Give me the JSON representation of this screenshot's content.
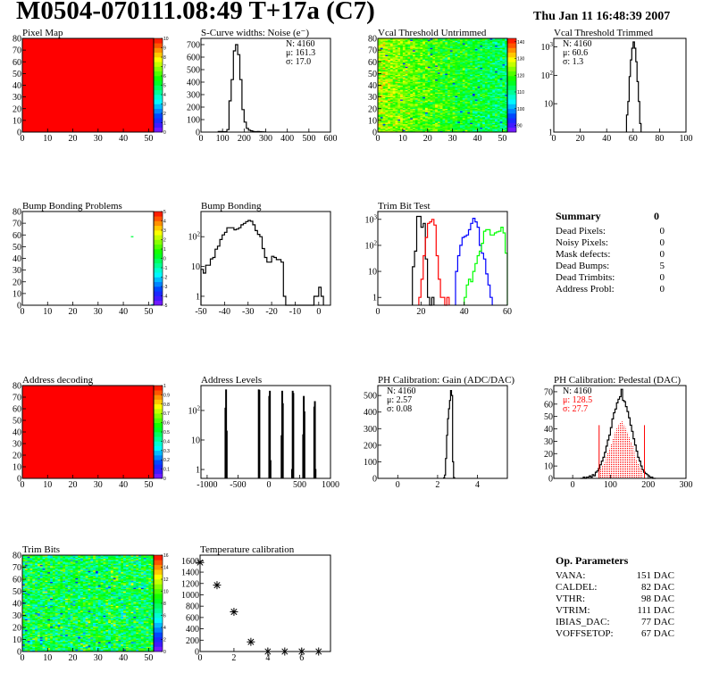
{
  "header": {
    "title": "M0504-070111.08:49 T+17a (C7)",
    "date": "Thu Jan 11 16:48:39 2007"
  },
  "summary": {
    "title": "Summary",
    "total": "0",
    "rows": [
      {
        "label": "Dead Pixels:",
        "value": "0"
      },
      {
        "label": "Noisy Pixels:",
        "value": "0"
      },
      {
        "label": "Mask defects:",
        "value": "0"
      },
      {
        "label": "Dead Bumps:",
        "value": "5"
      },
      {
        "label": "Dead Trimbits:",
        "value": "0"
      },
      {
        "label": "Address Probl:",
        "value": "0"
      }
    ]
  },
  "op_parameters": {
    "title": "Op. Parameters",
    "rows": [
      {
        "label": "VANA:",
        "value": "151 DAC"
      },
      {
        "label": "CALDEL:",
        "value": "82 DAC"
      },
      {
        "label": "VTHR:",
        "value": "98 DAC"
      },
      {
        "label": "VTRIM:",
        "value": "111 DAC"
      },
      {
        "label": "IBIAS_DAC:",
        "value": "77 DAC"
      },
      {
        "label": "VOFFSETOP:",
        "value": "67 DAC"
      }
    ]
  },
  "palette": "rainbow",
  "chart_data": [
    {
      "title": "Pixel Map",
      "type": "heatmap",
      "xlim": [
        0,
        52
      ],
      "ylim": [
        0,
        80
      ],
      "zlim": [
        0,
        10
      ],
      "xticks": [
        "0",
        "10",
        "20",
        "30",
        "40",
        "50"
      ],
      "yticks": [
        "0",
        "10",
        "20",
        "30",
        "40",
        "50",
        "60",
        "70",
        "80"
      ],
      "zticks": [
        "0",
        "1",
        "2",
        "3",
        "4",
        "5",
        "6",
        "7",
        "8",
        "9",
        "10"
      ],
      "uniform_value": 10
    },
    {
      "title": "S-Curve widths: Noise (e⁻)",
      "type": "histogram",
      "log": false,
      "xlim": [
        0,
        600
      ],
      "ylim": [
        0,
        750
      ],
      "xticks": [
        "0",
        "100",
        "200",
        "300",
        "400",
        "500",
        "600"
      ],
      "yticks": [
        "0",
        "100",
        "200",
        "300",
        "400",
        "500",
        "600",
        "700"
      ],
      "stats_position": "top-right",
      "stats": [
        {
          "text": "N: 4160"
        },
        {
          "text": "μ: 161.3"
        },
        {
          "text": "σ: 17.0"
        }
      ],
      "series": [
        {
          "color": "#000000",
          "bin_start": 80,
          "bin_width": 10,
          "values": [
            5,
            5,
            3,
            3,
            20,
            250,
            420,
            650,
            700,
            620,
            420,
            180,
            80,
            30,
            15,
            10,
            5,
            3,
            5,
            3,
            2,
            1
          ]
        }
      ]
    },
    {
      "title": "Vcal Threshold Untrimmed",
      "type": "heatmap",
      "xlim": [
        0,
        52
      ],
      "ylim": [
        0,
        80
      ],
      "zlim": [
        86,
        142
      ],
      "xticks": [
        "0",
        "10",
        "20",
        "30",
        "40",
        "50"
      ],
      "yticks": [
        "0",
        "10",
        "20",
        "30",
        "40",
        "50",
        "60",
        "70",
        "80"
      ],
      "zticks": [
        "90",
        "100",
        "110",
        "120",
        "130",
        "140"
      ],
      "z_left": 125,
      "z_right": 112,
      "z_spread": 6
    },
    {
      "title": "Vcal Threshold Trimmed",
      "type": "histogram",
      "log": true,
      "xlim": [
        0,
        100
      ],
      "ylim": [
        1,
        2000
      ],
      "xticks": [
        "0",
        "20",
        "40",
        "60",
        "80",
        "100"
      ],
      "yticks": [
        "1",
        "10",
        "10^2",
        "10^3"
      ],
      "stats_position": "top-left",
      "stats": [
        {
          "text": "N: 4160"
        },
        {
          "text": "μ: 60.6"
        },
        {
          "text": "σ:  1.3"
        }
      ],
      "series": [
        {
          "color": "#000000",
          "bin_start": 55,
          "bin_width": 1,
          "values": [
            4,
            12,
            90,
            350,
            900,
            1500,
            900,
            300,
            60,
            12,
            2
          ]
        }
      ]
    },
    {
      "title": "Bump Bonding Problems",
      "type": "heatmap",
      "xlim": [
        0,
        52
      ],
      "ylim": [
        0,
        80
      ],
      "zlim": [
        -5,
        5
      ],
      "xticks": [
        "0",
        "10",
        "20",
        "30",
        "40",
        "50"
      ],
      "yticks": [
        "0",
        "10",
        "20",
        "30",
        "40",
        "50",
        "60",
        "70",
        "80"
      ],
      "zticks": [
        "-5",
        "-4",
        "-3",
        "-2",
        "-1",
        "0",
        "1",
        "2",
        "3",
        "4",
        "5"
      ],
      "points": [
        {
          "x": 43,
          "y": 58,
          "z": 0
        },
        {
          "x": 51,
          "y": 0,
          "z": -2
        }
      ]
    },
    {
      "title": "Bump Bonding",
      "type": "histogram",
      "log": true,
      "xlim": [
        -50,
        5
      ],
      "ylim": [
        0.5,
        700
      ],
      "xticks": [
        "-50",
        "-40",
        "-30",
        "-20",
        "-10",
        "0"
      ],
      "yticks": [
        "1",
        "10",
        "10^2"
      ],
      "series": [
        {
          "color": "#000000",
          "bin_start": -50,
          "bin_width": 1,
          "values": [
            8,
            6,
            11,
            11,
            18,
            20,
            38,
            48,
            80,
            115,
            140,
            200,
            200,
            200,
            170,
            180,
            200,
            250,
            280,
            320,
            350,
            330,
            250,
            160,
            120,
            100,
            40,
            20,
            14,
            14,
            22,
            20,
            17,
            17,
            14,
            1,
            0,
            0,
            0,
            0,
            0,
            0,
            0,
            0,
            0,
            0,
            0,
            0,
            1,
            1,
            2,
            1
          ]
        }
      ]
    },
    {
      "title": "Trim Bit Test",
      "type": "histogram",
      "log": true,
      "xlim": [
        0,
        60
      ],
      "ylim": [
        0.5,
        2000
      ],
      "xticks": [
        "0",
        "20",
        "40",
        "60"
      ],
      "yticks": [
        "1",
        "10",
        "10^2",
        "10^3"
      ],
      "series": [
        {
          "color": "#000000",
          "bin_start": 16,
          "bin_width": 1,
          "values": [
            15,
            60,
            1300,
            1300,
            500,
            700,
            30,
            1,
            0,
            1
          ]
        },
        {
          "color": "#ff0000",
          "bin_start": 19,
          "bin_width": 1,
          "values": [
            1,
            5,
            40,
            200,
            700,
            800,
            1000,
            600,
            40,
            5,
            1,
            1,
            0,
            1
          ]
        },
        {
          "color": "#0000ff",
          "bin_start": 36,
          "bin_width": 1,
          "values": [
            10,
            40,
            100,
            200,
            220,
            250,
            400,
            700,
            1100,
            800,
            500,
            100,
            50,
            30,
            8,
            3,
            1
          ]
        },
        {
          "color": "#00ff00",
          "bin_start": 40,
          "bin_width": 1,
          "values": [
            1,
            3,
            5,
            4,
            10,
            20,
            40,
            60,
            120,
            350,
            400,
            400,
            250,
            250,
            300,
            330,
            350,
            500,
            300,
            50
          ]
        }
      ]
    },
    {
      "title": "Address decoding",
      "type": "heatmap",
      "xlim": [
        0,
        52
      ],
      "ylim": [
        0,
        80
      ],
      "zlim": [
        0,
        1
      ],
      "xticks": [
        "0",
        "10",
        "20",
        "30",
        "40",
        "50"
      ],
      "yticks": [
        "0",
        "10",
        "20",
        "30",
        "40",
        "50",
        "60",
        "70",
        "80"
      ],
      "zticks": [
        "0",
        "0.1",
        "0.2",
        "0.3",
        "0.4",
        "0.5",
        "0.6",
        "0.7",
        "0.8",
        "0.9",
        "1"
      ],
      "uniform_value": 1
    },
    {
      "title": "Address Levels",
      "type": "bars",
      "log": true,
      "xlim": [
        -1100,
        1000
      ],
      "ylim": [
        0.5,
        700
      ],
      "xticks": [
        "-1000",
        "-500",
        "0",
        "500",
        "1000"
      ],
      "yticks": [
        "1",
        "10",
        "10^2"
      ],
      "bar_width": 10,
      "bars": [
        [
          -710,
          120
        ],
        [
          -700,
          500
        ],
        [
          -690,
          20
        ],
        [
          -170,
          500
        ],
        [
          -160,
          480
        ],
        [
          0,
          300
        ],
        [
          10,
          450
        ],
        [
          20,
          2
        ],
        [
          200,
          14
        ],
        [
          210,
          450
        ],
        [
          220,
          170
        ],
        [
          370,
          1
        ],
        [
          380,
          450
        ],
        [
          390,
          380
        ],
        [
          550,
          15
        ],
        [
          560,
          300
        ],
        [
          570,
          90
        ],
        [
          730,
          130
        ],
        [
          740,
          200
        ],
        [
          750,
          1
        ]
      ]
    },
    {
      "title": "PH Calibration: Gain (ADC/DAC)",
      "type": "histogram",
      "log": false,
      "xlim": [
        -1,
        5.5
      ],
      "ylim": [
        0,
        560
      ],
      "xticks": [
        "0",
        "2",
        "4"
      ],
      "yticks": [
        "0",
        "100",
        "200",
        "300",
        "400",
        "500"
      ],
      "stats_position": "top-left",
      "stats": [
        {
          "text": "N: 4160"
        },
        {
          "text": "μ: 2.57"
        },
        {
          "text": "σ: 0.08"
        }
      ],
      "series": [
        {
          "color": "#000000",
          "bin_start": 2.3,
          "bin_width": 0.05,
          "values": [
            3,
            20,
            120,
            260,
            360,
            420,
            470,
            530,
            500,
            100,
            5
          ]
        }
      ]
    },
    {
      "title": "PH Calibration: Pedestal (DAC)",
      "type": "histogram",
      "log": false,
      "xlim": [
        -50,
        300
      ],
      "ylim": [
        0,
        75
      ],
      "xticks": [
        "0",
        "100",
        "200",
        "300"
      ],
      "yticks": [
        "0",
        "10",
        "20",
        "30",
        "40",
        "50",
        "60",
        "70"
      ],
      "stats_position": "top-left",
      "stats": [
        {
          "text": "N: 4160"
        },
        {
          "text": "μ: 128.5",
          "color": "#ff0000"
        },
        {
          "text": "σ: 27.7",
          "color": "#ff0000"
        }
      ],
      "cut_lines": {
        "color": "#ff0000",
        "x": [
          70,
          190
        ],
        "height": 43
      },
      "series": [
        {
          "color": "#000000",
          "bin_start": 20,
          "bin_width": 4,
          "values": [
            0,
            0,
            1,
            0,
            1,
            1,
            2,
            1,
            3,
            2,
            5,
            6,
            8,
            11,
            14,
            17,
            21,
            26,
            31,
            35,
            41,
            48,
            53,
            56,
            61,
            64,
            66,
            72,
            63,
            62,
            58,
            54,
            49,
            43,
            38,
            32,
            27,
            22,
            17,
            14,
            10,
            7,
            5,
            4,
            3,
            2,
            1,
            1,
            0,
            0
          ]
        },
        {
          "color": "#ff0000",
          "fill": "dotted",
          "bin_start": 20,
          "bin_width": 4,
          "values": [
            0,
            0,
            0,
            0,
            0,
            0,
            0,
            0,
            0,
            0,
            0,
            0,
            0,
            8,
            10,
            12,
            14,
            18,
            21,
            24,
            28,
            32,
            36,
            38,
            41,
            43,
            45,
            46,
            43,
            42,
            40,
            37,
            33,
            29,
            26,
            22,
            18,
            15,
            12,
            9,
            7,
            0,
            0,
            0,
            0,
            0,
            0,
            0,
            0,
            0
          ]
        }
      ]
    },
    {
      "title": "Trim Bits",
      "type": "heatmap",
      "xlim": [
        0,
        52
      ],
      "ylim": [
        0,
        80
      ],
      "zlim": [
        0,
        16
      ],
      "xticks": [
        "0",
        "10",
        "20",
        "30",
        "40",
        "50"
      ],
      "yticks": [
        "0",
        "10",
        "20",
        "30",
        "40",
        "50",
        "60",
        "70",
        "80"
      ],
      "zticks": [
        "0",
        "2",
        "4",
        "6",
        "8",
        "10",
        "12",
        "14",
        "16"
      ],
      "z_left": 8,
      "z_right": 8,
      "z_spread": 2.5
    },
    {
      "title": "Temperature calibration",
      "type": "scatter",
      "marker": "star",
      "xlim": [
        0,
        7.7
      ],
      "ylim": [
        0,
        1700
      ],
      "xticks": [
        "0",
        "2",
        "4",
        "6"
      ],
      "yticks": [
        "0",
        "200",
        "400",
        "600",
        "800",
        "1000",
        "1200",
        "1400",
        "1600"
      ],
      "x": [
        0,
        1,
        2,
        3,
        4,
        5,
        6,
        7
      ],
      "y": [
        1570,
        1170,
        700,
        170,
        0,
        0,
        0,
        0
      ]
    }
  ]
}
